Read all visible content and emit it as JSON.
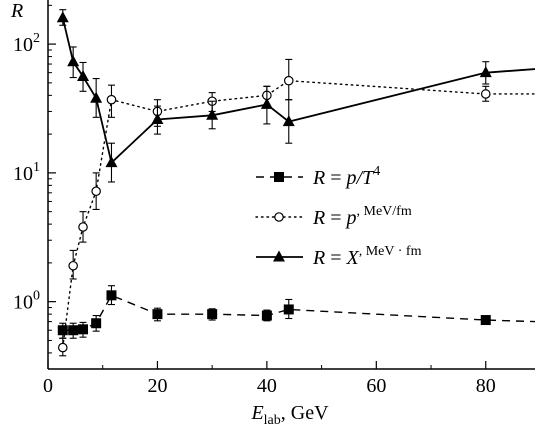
{
  "chart_data": {
    "type": "line",
    "x_label_main": "E",
    "x_label_sub": "lab",
    "x_label_unit": ", GeV",
    "y_symbol": "R",
    "x_ticks": [
      0,
      20,
      40,
      60,
      80
    ],
    "y_ticks": [
      {
        "base": "10",
        "exp": "0",
        "value": 1
      },
      {
        "base": "10",
        "exp": "1",
        "value": 10
      },
      {
        "base": "10",
        "exp": "2",
        "value": 100
      }
    ],
    "xlim": [
      0,
      89
    ],
    "ylim": [
      0.3,
      220
    ],
    "y_scale": "log",
    "grid": false,
    "legend_position": "center-right",
    "series": [
      {
        "legend_parts": [
          "R",
          " = ",
          "p/T",
          "4",
          ""
        ],
        "marker": "square",
        "line_style": "dashed",
        "points": [
          {
            "x": 2.7,
            "y": 0.6,
            "lo": 0.52,
            "hi": 0.68
          },
          {
            "x": 4.6,
            "y": 0.6,
            "lo": 0.52,
            "hi": 0.68
          },
          {
            "x": 6.4,
            "y": 0.61,
            "lo": 0.53,
            "hi": 0.69
          },
          {
            "x": 8.8,
            "y": 0.68,
            "lo": 0.59,
            "hi": 0.78
          },
          {
            "x": 11.6,
            "y": 1.12,
            "lo": 0.95,
            "hi": 1.33
          },
          {
            "x": 20,
            "y": 0.8,
            "lo": 0.71,
            "hi": 0.89
          },
          {
            "x": 30,
            "y": 0.8,
            "lo": 0.72,
            "hi": 0.88
          },
          {
            "x": 40,
            "y": 0.78,
            "lo": 0.71,
            "hi": 0.86
          },
          {
            "x": 44,
            "y": 0.87,
            "lo": 0.74,
            "hi": 1.04
          },
          {
            "x": 80,
            "y": 0.72,
            "lo": 0.69,
            "hi": 0.75
          },
          {
            "x": 89,
            "y": 0.7
          }
        ]
      },
      {
        "legend_parts": [
          "R",
          " = ",
          "p",
          ", MeV/fm",
          "3"
        ],
        "marker": "circle",
        "line_style": "dotted",
        "points": [
          {
            "x": 2.7,
            "y": 0.44,
            "lo": 0.38,
            "hi": 0.52
          },
          {
            "x": 4.6,
            "y": 1.9,
            "lo": 1.5,
            "hi": 2.5
          },
          {
            "x": 6.4,
            "y": 3.8,
            "lo": 2.9,
            "hi": 5.0
          },
          {
            "x": 8.8,
            "y": 7.2,
            "lo": 5.2,
            "hi": 10.0
          },
          {
            "x": 11.6,
            "y": 37,
            "lo": 27,
            "hi": 48
          },
          {
            "x": 20,
            "y": 30,
            "lo": 23,
            "hi": 37
          },
          {
            "x": 30,
            "y": 36,
            "lo": 30,
            "hi": 42
          },
          {
            "x": 40,
            "y": 40,
            "lo": 33,
            "hi": 47
          },
          {
            "x": 44,
            "y": 52,
            "lo": 37,
            "hi": 76
          },
          {
            "x": 80,
            "y": 41,
            "lo": 36,
            "hi": 47
          },
          {
            "x": 89,
            "y": 41
          }
        ]
      },
      {
        "legend_parts": [
          "R",
          " = ",
          "X",
          ", MeV · fm",
          "3"
        ],
        "marker": "triangle",
        "line_style": "solid",
        "points": [
          {
            "x": 2.7,
            "y": 160,
            "lo": 140,
            "hi": 185
          },
          {
            "x": 4.6,
            "y": 73,
            "lo": 55,
            "hi": 95
          },
          {
            "x": 6.4,
            "y": 56,
            "lo": 43,
            "hi": 72
          },
          {
            "x": 8.8,
            "y": 38,
            "lo": 27,
            "hi": 54
          },
          {
            "x": 11.6,
            "y": 12,
            "lo": 8.5,
            "hi": 17
          },
          {
            "x": 20,
            "y": 26,
            "lo": 20,
            "hi": 33
          },
          {
            "x": 30,
            "y": 28,
            "lo": 22,
            "hi": 36
          },
          {
            "x": 40,
            "y": 34,
            "lo": 24,
            "hi": 47
          },
          {
            "x": 44,
            "y": 25,
            "lo": 17,
            "hi": 37
          },
          {
            "x": 80,
            "y": 60,
            "lo": 49,
            "hi": 73
          },
          {
            "x": 89,
            "y": 64
          }
        ]
      }
    ]
  }
}
